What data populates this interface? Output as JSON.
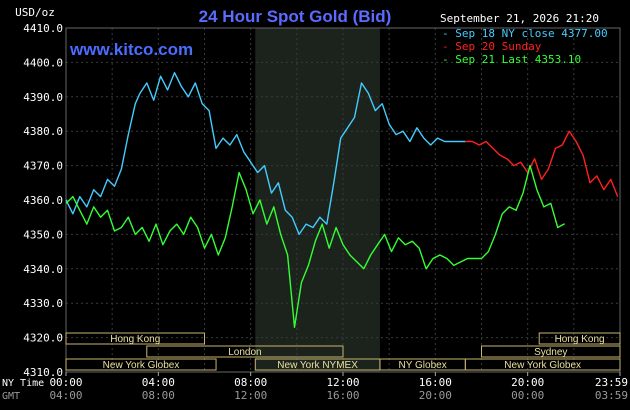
{
  "chart_data": {
    "type": "line",
    "title": "24 Hour Spot Gold (Bid)",
    "watermark": "www.kitco.com",
    "unit_label": "USD/oz",
    "timestamp": "September 21, 2026 21:20",
    "ylim": [
      4310,
      4410
    ],
    "y_ticks": [
      4410,
      4400,
      4390,
      4380,
      4370,
      4360,
      4350,
      4340,
      4330,
      4320,
      4310
    ],
    "y_tick_labels": [
      "4410.0",
      "4400.0",
      "4390.0",
      "4380.0",
      "4370.0",
      "4360.0",
      "4350.0",
      "4340.0",
      "4330.0",
      "4320.0",
      "4310.0"
    ],
    "xlim": [
      0,
      24
    ],
    "grid": true,
    "legend_placement": "top-right",
    "legend": [
      {
        "label": "Sep 18 NY close 4377.00",
        "color": "#44ccff"
      },
      {
        "label": "Sep 20 Sunday",
        "color": "#ff2020"
      },
      {
        "label": "Sep 21 Last 4353.10",
        "color": "#33ff33"
      }
    ],
    "time_axes": [
      {
        "name": "NY Time",
        "labels": [
          "00:00",
          "04:00",
          "08:00",
          "12:00",
          "16:00",
          "20:00",
          "23:59"
        ],
        "color": "#ffffff"
      },
      {
        "name": "GMT",
        "labels": [
          "04:00",
          "08:00",
          "12:00",
          "16:00",
          "20:00",
          "00:00",
          "03:59"
        ],
        "color": "#9a9a9a"
      }
    ],
    "sessions": [
      {
        "label": "Hong Kong",
        "start": 0,
        "end": 6
      },
      {
        "label": "London",
        "start": 3.5,
        "end": 12
      },
      {
        "label": "New York Globex",
        "start": 0,
        "end": 6.5
      },
      {
        "label": "New York NYMEX",
        "start": 8.2,
        "end": 13.6
      },
      {
        "label": "NY Globex",
        "start": 13.6,
        "end": 17.3
      },
      {
        "label": "Hong Kong",
        "start": 20.5,
        "end": 24
      },
      {
        "label": "Sydney",
        "start": 18,
        "end": 24
      },
      {
        "label": "New York Globex",
        "start": 17.3,
        "end": 24
      }
    ],
    "shaded_interval": [
      8.2,
      13.6
    ],
    "series": [
      {
        "name": "Sep 18 NY close 4377.00",
        "color": "#44ccff",
        "x": [
          0,
          0.3,
          0.6,
          0.9,
          1.2,
          1.5,
          1.8,
          2.1,
          2.4,
          2.7,
          3.0,
          3.2,
          3.5,
          3.8,
          4.1,
          4.4,
          4.7,
          5.0,
          5.3,
          5.6,
          5.9,
          6.2,
          6.5,
          6.8,
          7.1,
          7.4,
          7.7,
          8.0,
          8.3,
          8.6,
          8.9,
          9.2,
          9.5,
          9.8,
          10.1,
          10.4,
          10.7,
          11.0,
          11.3,
          11.6,
          11.9,
          12.2,
          12.5,
          12.8,
          13.1,
          13.4,
          13.7,
          14.0,
          14.3,
          14.6,
          14.9,
          15.2,
          15.5,
          15.8,
          16.1,
          16.4,
          16.7,
          17.0,
          17.3
        ],
        "y": [
          4360,
          4356,
          4361,
          4358,
          4363,
          4361,
          4366,
          4364,
          4369,
          4379,
          4388,
          4391,
          4394,
          4389,
          4396,
          4392,
          4397,
          4393,
          4390,
          4394,
          4388,
          4386,
          4375,
          4378,
          4376,
          4379,
          4374,
          4371,
          4368,
          4370,
          4362,
          4365,
          4357,
          4355,
          4350,
          4353,
          4352,
          4355,
          4353,
          4365,
          4378,
          4381,
          4384,
          4394,
          4391,
          4386,
          4388,
          4382,
          4379,
          4380,
          4377,
          4381,
          4378,
          4376,
          4378,
          4377,
          4377,
          4377,
          4377
        ]
      },
      {
        "name": "Sep 20 Sunday",
        "color": "#ff2020",
        "x": [
          17.3,
          17.6,
          17.9,
          18.2,
          18.5,
          18.8,
          19.1,
          19.4,
          19.7,
          20.0,
          20.3,
          20.6,
          20.9,
          21.2,
          21.5,
          21.8,
          22.1,
          22.4,
          22.7,
          23.0,
          23.3,
          23.6,
          23.9
        ],
        "y": [
          4377,
          4377,
          4376,
          4377,
          4375,
          4373,
          4372,
          4370,
          4371,
          4368,
          4372,
          4366,
          4369,
          4375,
          4376,
          4380,
          4377,
          4373,
          4365,
          4367,
          4363,
          4366,
          4361
        ]
      },
      {
        "name": "Sep 21 Last 4353.10",
        "color": "#33ff33",
        "x": [
          0,
          0.3,
          0.6,
          0.9,
          1.2,
          1.5,
          1.8,
          2.1,
          2.4,
          2.7,
          3.0,
          3.3,
          3.6,
          3.9,
          4.2,
          4.5,
          4.8,
          5.1,
          5.4,
          5.7,
          6.0,
          6.3,
          6.6,
          6.9,
          7.2,
          7.5,
          7.8,
          8.1,
          8.4,
          8.7,
          9.0,
          9.3,
          9.6,
          9.9,
          10.2,
          10.5,
          10.8,
          11.1,
          11.4,
          11.7,
          12.0,
          12.3,
          12.6,
          12.9,
          13.2,
          13.5,
          13.8,
          14.1,
          14.4,
          14.7,
          15.0,
          15.3,
          15.6,
          15.9,
          16.2,
          16.5,
          16.8,
          17.1,
          17.4,
          17.7,
          18.0,
          18.3,
          18.6,
          18.9,
          19.2,
          19.5,
          19.8,
          20.1,
          20.4,
          20.7,
          21.0,
          21.3,
          21.6
        ],
        "y": [
          4359,
          4361,
          4357,
          4353,
          4358,
          4355,
          4357,
          4351,
          4352,
          4355,
          4350,
          4352,
          4348,
          4353,
          4347,
          4351,
          4353,
          4350,
          4355,
          4352,
          4346,
          4350,
          4344,
          4349,
          4358,
          4368,
          4363,
          4356,
          4360,
          4353,
          4358,
          4350,
          4344,
          4323,
          4336,
          4341,
          4348,
          4353,
          4346,
          4352,
          4347,
          4344,
          4342,
          4340,
          4344,
          4347,
          4350,
          4345,
          4349,
          4347,
          4348,
          4346,
          4340,
          4343,
          4344,
          4343,
          4341,
          4342,
          4343,
          4343,
          4343,
          4345,
          4350,
          4356,
          4358,
          4357,
          4362,
          4370,
          4363,
          4358,
          4359,
          4352,
          4353.1
        ]
      }
    ]
  }
}
